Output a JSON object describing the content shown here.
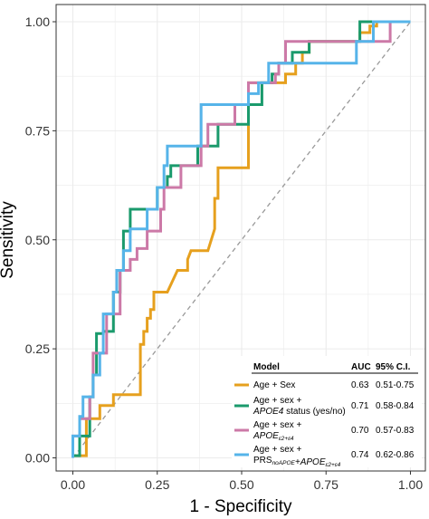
{
  "chart_data": {
    "type": "line",
    "xlabel": "1 - Specificity",
    "ylabel": "Sensitivity",
    "xlim": [
      0,
      1
    ],
    "ylim": [
      0,
      1
    ],
    "x_ticks": [
      "0.00",
      "0.25",
      "0.50",
      "0.75",
      "1.00"
    ],
    "y_ticks": [
      "0.00",
      "0.25",
      "0.50",
      "0.75",
      "1.00"
    ],
    "grid": true,
    "legend_position": "bottom-right",
    "reference_line": {
      "style": "dashed",
      "color": "#999999",
      "x": [
        0,
        1
      ],
      "y": [
        0,
        1
      ]
    },
    "legend": {
      "headers": {
        "model": "Model",
        "auc": "AUC",
        "ci": "95% C.I."
      },
      "rows": [
        {
          "line1": "Age + Sex",
          "line2_pre": "",
          "line2_italic": "",
          "line2_post": "",
          "sub1": "",
          "mid": "",
          "sub2": "",
          "auc": "0.63",
          "ci": "0.51-0.75"
        },
        {
          "line1": "Age + sex +",
          "line2_pre": "",
          "line2_italic": "APOE4",
          "line2_post": " status (yes/no)",
          "sub1": "",
          "mid": "",
          "sub2": "",
          "auc": "0.71",
          "ci": "0.58-0.84"
        },
        {
          "line1": "Age + sex +",
          "line2_pre": "",
          "line2_italic": "APOE",
          "line2_post": "",
          "sub1": "ε2+ε4",
          "mid": "",
          "sub2": "",
          "auc": "0.70",
          "ci": "0.57-0.83"
        },
        {
          "line1": "Age + sex +",
          "line2_pre": "PRS",
          "line2_italic": "",
          "line2_post": "",
          "sub1": "noAPOE",
          "mid": "+APOE",
          "sub2": "ε2+ε4",
          "auc": "0.74",
          "ci": "0.62-0.86"
        }
      ]
    },
    "series": [
      {
        "color": "#E6A01E",
        "x": [
          0,
          0,
          0.04,
          0.04,
          0.08,
          0.08,
          0.12,
          0.12,
          0.2,
          0.2,
          0.21,
          0.21,
          0.22,
          0.22,
          0.23,
          0.23,
          0.24,
          0.24,
          0.28,
          0.31,
          0.34,
          0.34,
          0.35,
          0.37,
          0.4,
          0.42,
          0.42,
          0.43,
          0.43,
          0.49,
          0.5,
          0.52,
          0.52,
          0.61,
          0.63,
          0.63,
          0.66,
          0.66,
          0.68,
          0.68,
          0.7,
          0.7,
          0.72,
          0.72,
          0.8,
          0.85,
          0.85,
          0.88,
          0.88,
          0.9,
          0.9,
          0.96,
          0.96,
          1.0
        ],
        "y": [
          0,
          0.005,
          0.005,
          0.09,
          0.09,
          0.12,
          0.12,
          0.145,
          0.145,
          0.26,
          0.26,
          0.29,
          0.29,
          0.32,
          0.32,
          0.34,
          0.34,
          0.38,
          0.38,
          0.43,
          0.43,
          0.455,
          0.475,
          0.475,
          0.475,
          0.525,
          0.595,
          0.595,
          0.665,
          0.665,
          0.665,
          0.665,
          0.86,
          0.86,
          0.86,
          0.88,
          0.88,
          0.905,
          0.905,
          0.93,
          0.93,
          0.955,
          0.955,
          0.955,
          0.955,
          0.955,
          0.975,
          0.975,
          0.99,
          0.99,
          1.0,
          1.0,
          1.0,
          1.0
        ]
      },
      {
        "color": "#1A9A6C",
        "x": [
          0,
          0,
          0.02,
          0.02,
          0.05,
          0.05,
          0.06,
          0.06,
          0.07,
          0.07,
          0.09,
          0.09,
          0.12,
          0.12,
          0.14,
          0.14,
          0.15,
          0.15,
          0.17,
          0.17,
          0.25,
          0.25,
          0.28,
          0.28,
          0.29,
          0.29,
          0.32,
          0.32,
          0.37,
          0.37,
          0.43,
          0.43,
          0.52,
          0.52,
          0.56,
          0.56,
          0.59,
          0.59,
          0.61,
          0.61,
          0.65,
          0.65,
          0.7,
          0.7,
          0.85,
          0.85,
          0.89,
          0.89,
          1.0
        ],
        "y": [
          0,
          0.005,
          0.005,
          0.05,
          0.05,
          0.14,
          0.14,
          0.19,
          0.19,
          0.285,
          0.285,
          0.29,
          0.29,
          0.38,
          0.38,
          0.43,
          0.43,
          0.52,
          0.52,
          0.57,
          0.57,
          0.62,
          0.62,
          0.645,
          0.645,
          0.67,
          0.67,
          0.67,
          0.67,
          0.715,
          0.715,
          0.765,
          0.765,
          0.81,
          0.81,
          0.86,
          0.86,
          0.88,
          0.88,
          0.905,
          0.905,
          0.93,
          0.93,
          0.955,
          0.955,
          1.0,
          1.0,
          1.0,
          1.0
        ]
      },
      {
        "color": "#CC79A7",
        "x": [
          0,
          0,
          0.02,
          0.02,
          0.05,
          0.05,
          0.06,
          0.06,
          0.1,
          0.1,
          0.14,
          0.14,
          0.17,
          0.17,
          0.19,
          0.19,
          0.22,
          0.22,
          0.26,
          0.26,
          0.27,
          0.27,
          0.32,
          0.32,
          0.38,
          0.38,
          0.4,
          0.4,
          0.48,
          0.48,
          0.52,
          0.52,
          0.6,
          0.6,
          0.61,
          0.61,
          0.63,
          0.63,
          0.72,
          0.72,
          0.82,
          0.82,
          0.85,
          0.85,
          0.88,
          0.88,
          0.94,
          0.94,
          1.0
        ],
        "y": [
          0,
          0.05,
          0.05,
          0.09,
          0.09,
          0.14,
          0.14,
          0.24,
          0.24,
          0.33,
          0.33,
          0.43,
          0.43,
          0.455,
          0.455,
          0.48,
          0.48,
          0.52,
          0.52,
          0.57,
          0.57,
          0.62,
          0.62,
          0.67,
          0.67,
          0.715,
          0.715,
          0.765,
          0.765,
          0.81,
          0.81,
          0.86,
          0.86,
          0.88,
          0.88,
          0.905,
          0.905,
          0.955,
          0.955,
          0.955,
          0.955,
          0.955,
          0.955,
          0.955,
          0.955,
          0.955,
          0.955,
          1.0,
          1.0
        ]
      },
      {
        "color": "#56B4E9",
        "x": [
          0,
          0,
          0.02,
          0.02,
          0.03,
          0.03,
          0.06,
          0.06,
          0.08,
          0.08,
          0.09,
          0.09,
          0.12,
          0.12,
          0.13,
          0.13,
          0.15,
          0.15,
          0.17,
          0.17,
          0.22,
          0.22,
          0.25,
          0.25,
          0.27,
          0.27,
          0.28,
          0.28,
          0.38,
          0.38,
          0.52,
          0.52,
          0.55,
          0.55,
          0.58,
          0.58,
          0.84,
          0.84,
          0.89,
          0.89,
          1.0
        ],
        "y": [
          0,
          0.05,
          0.05,
          0.095,
          0.095,
          0.14,
          0.14,
          0.19,
          0.19,
          0.24,
          0.24,
          0.33,
          0.33,
          0.38,
          0.38,
          0.43,
          0.43,
          0.475,
          0.475,
          0.525,
          0.525,
          0.57,
          0.57,
          0.62,
          0.62,
          0.67,
          0.67,
          0.715,
          0.715,
          0.81,
          0.81,
          0.835,
          0.835,
          0.86,
          0.86,
          0.905,
          0.905,
          0.955,
          0.955,
          1.0,
          1.0
        ]
      }
    ]
  }
}
